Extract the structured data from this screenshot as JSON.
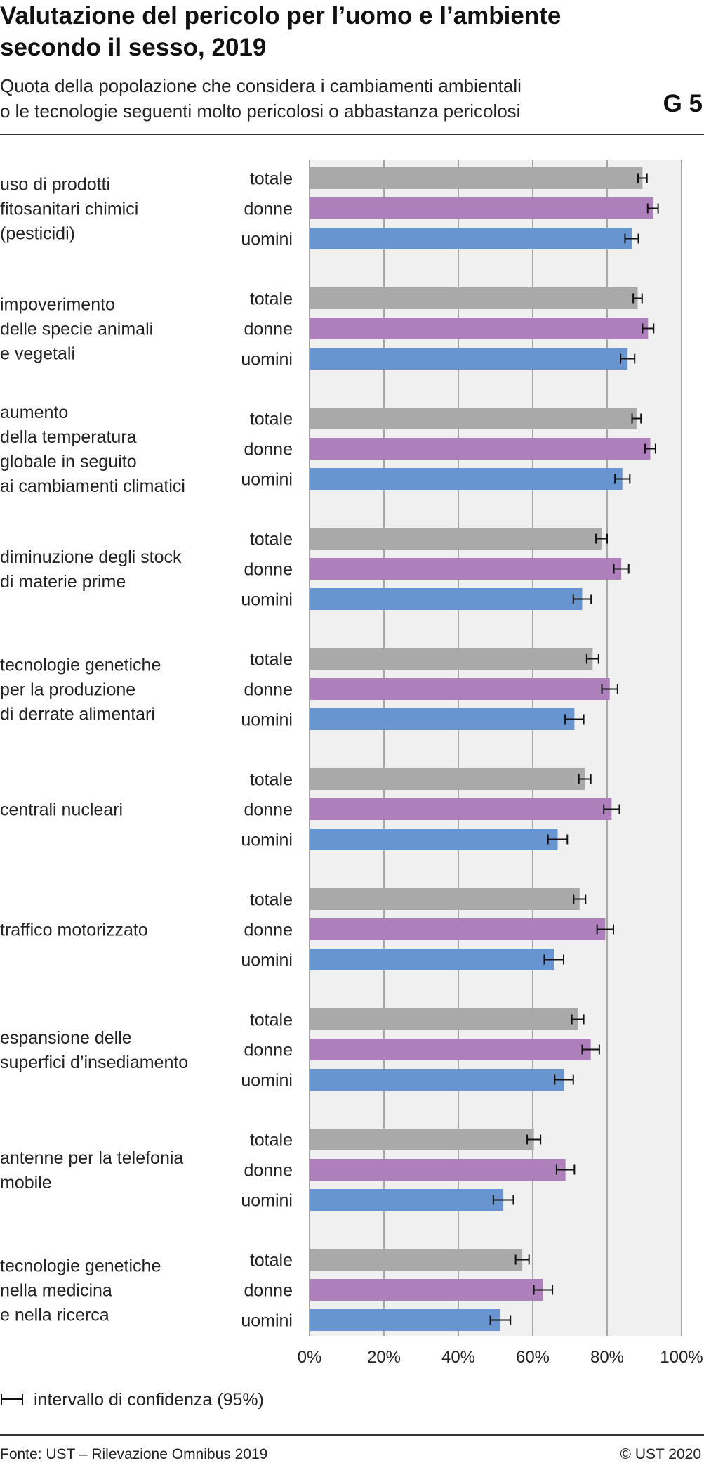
{
  "header": {
    "title_line1": "Valutazione del pericolo per l’uomo e l’ambiente",
    "title_line2": "secondo il sesso, 2019",
    "subtitle_line1": "Quota della popolazione che considera i cambiamenti ambientali",
    "subtitle_line2": "o le tecnologie seguenti molto pericolosi o abbastanza pericolosi",
    "graph_code": "G 5"
  },
  "footer": {
    "source": "Fonte: UST – Rilevazione Omnibus 2019",
    "copyright": "© UST 2020"
  },
  "legend": {
    "ci_label": "intervallo di confidenza (95%)"
  },
  "colors": {
    "totale": "#a9a9a9",
    "donne": "#ad7fbb",
    "uomini": "#6894cf",
    "plot_bg": "#f0f0f0",
    "grid": "#a6a6a6",
    "error_bar": "#111111"
  },
  "chart_data": {
    "type": "bar",
    "orientation": "horizontal",
    "title": "Valutazione del pericolo per l’uomo e l’ambiente secondo il sesso, 2019",
    "subtitle": "Quota della popolazione che considera i cambiamenti ambientali o le tecnologie seguenti molto pericolosi o abbastanza pericolosi",
    "xlim": [
      0,
      100
    ],
    "x_ticks": [
      "0%",
      "20%",
      "40%",
      "60%",
      "80%",
      "100%"
    ],
    "grid": true,
    "legend_position": "bottom-left",
    "series_names": [
      "totale",
      "donne",
      "uomini"
    ],
    "categories": [
      [
        "uso di prodotti",
        "fitosanitari chimici",
        "(pesticidi)"
      ],
      [
        "impoverimento",
        "delle specie animali",
        "e vegetali"
      ],
      [
        "aumento",
        "della temperatura",
        "globale in seguito",
        "ai cambiamenti climatici"
      ],
      [
        "diminuzione degli stock",
        "di materie prime"
      ],
      [
        "tecnologie genetiche",
        "per la produzione",
        "di derrate alimentari"
      ],
      [
        "centrali nucleari"
      ],
      [
        "traffico motorizzato"
      ],
      [
        "espansione delle",
        "superfici d’insediamento"
      ],
      [
        "antenne per la telefonia",
        "mobile"
      ],
      [
        "tecnologie genetiche",
        "nella medicina",
        "e nella ricerca"
      ]
    ],
    "series": [
      {
        "name": "totale",
        "values": [
          89.5,
          88.2,
          87.9,
          78.5,
          76.1,
          74.0,
          72.6,
          72.1,
          60.3,
          57.2
        ],
        "ci": [
          1.2,
          1.2,
          1.2,
          1.5,
          1.6,
          1.6,
          1.6,
          1.6,
          1.8,
          1.8
        ]
      },
      {
        "name": "donne",
        "values": [
          92.3,
          91.0,
          91.6,
          83.8,
          80.7,
          81.2,
          79.5,
          75.6,
          68.8,
          62.8
        ],
        "ci": [
          1.4,
          1.5,
          1.4,
          2.0,
          2.1,
          2.1,
          2.2,
          2.3,
          2.4,
          2.5
        ]
      },
      {
        "name": "uomini",
        "values": [
          86.6,
          85.5,
          84.1,
          73.3,
          71.2,
          66.7,
          65.7,
          68.4,
          52.1,
          51.3
        ],
        "ci": [
          1.8,
          1.9,
          2.0,
          2.4,
          2.5,
          2.6,
          2.6,
          2.5,
          2.7,
          2.7
        ]
      }
    ]
  }
}
